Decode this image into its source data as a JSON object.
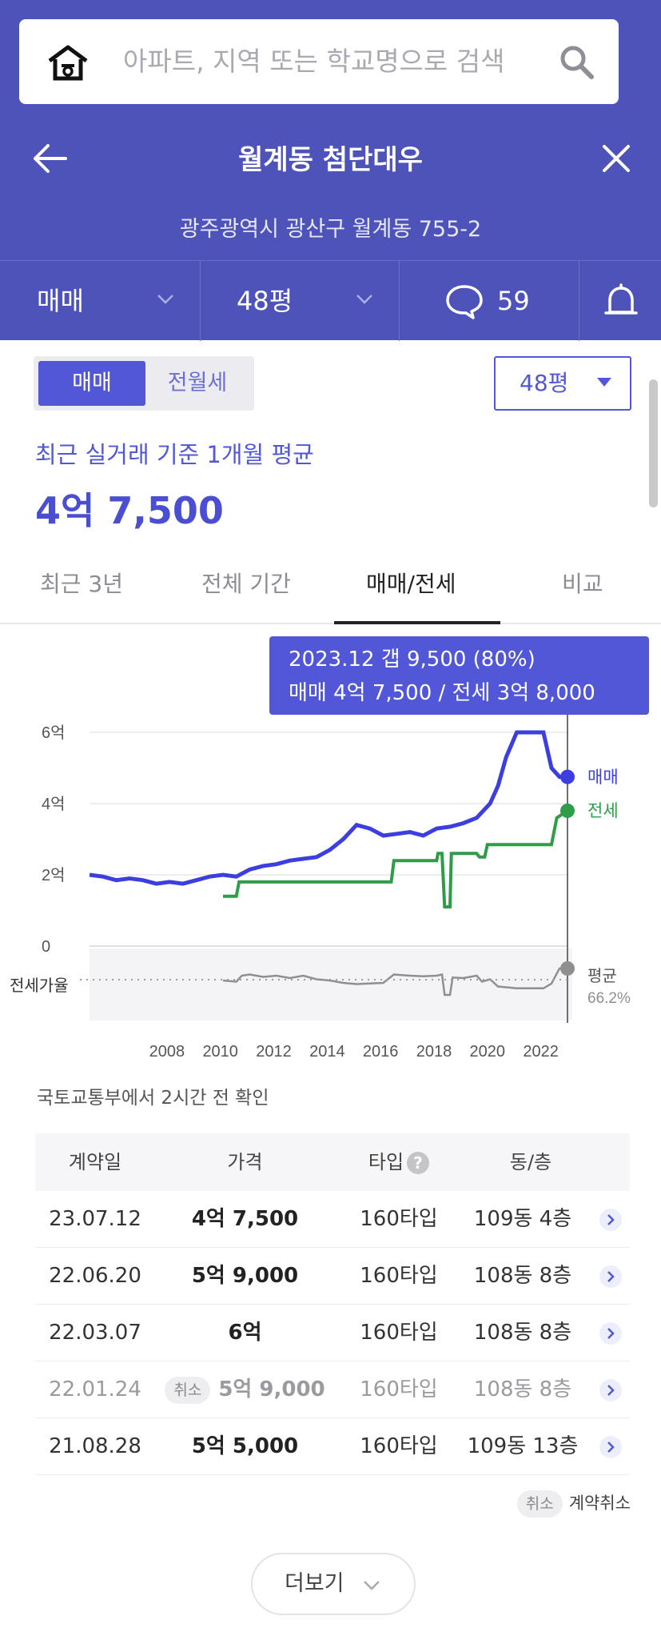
{
  "search": {
    "placeholder": "아파트, 지역 또는 학교명으로 검색",
    "icon": "search-icon",
    "home_icon": "home-icon"
  },
  "header": {
    "title": "월계동 첨단대우",
    "address": "광주광역시 광산구 월계동 755-2"
  },
  "filter_bar": {
    "trade_type": "매매",
    "size": "48평",
    "comment_count": "59"
  },
  "toggle": {
    "active": "매매",
    "inactive": "전월세"
  },
  "size_select": "48평",
  "average": {
    "label": "최근 실거래 기준 1개월 평균",
    "price": "4억 7,500"
  },
  "tabs": [
    {
      "label": "최근 3년",
      "active": false
    },
    {
      "label": "전체 기간",
      "active": false
    },
    {
      "label": "매매/전세",
      "active": true
    },
    {
      "label": "비교",
      "active": false
    }
  ],
  "chart_data": {
    "type": "line",
    "tooltip": {
      "line1": "2023.12  갭 9,500 (80%)",
      "line2": "매매 4억 7,500 / 전세 3억 8,000"
    },
    "y_ticks": [
      "6억",
      "4억",
      "2억",
      "0"
    ],
    "x_ticks": [
      "2008",
      "2010",
      "2012",
      "2014",
      "2016",
      "2018",
      "2020",
      "2022"
    ],
    "ylim": [
      0,
      6
    ],
    "series_labels": {
      "sale": "매매",
      "jeonse": "전세"
    },
    "ratio_label": "전세가율",
    "ratio_avg_label": "평균",
    "ratio_avg_value": "66.2%",
    "colors": {
      "sale": "#3c3ee0",
      "jeonse": "#2f9c49",
      "ratio": "#8f8f8f",
      "cursor": "#6f6f6f"
    },
    "sale": [
      [
        2006.0,
        2.0
      ],
      [
        2006.5,
        1.95
      ],
      [
        2007.0,
        1.85
      ],
      [
        2007.5,
        1.9
      ],
      [
        2008.0,
        1.85
      ],
      [
        2008.5,
        1.75
      ],
      [
        2009.0,
        1.8
      ],
      [
        2009.5,
        1.75
      ],
      [
        2010.0,
        1.85
      ],
      [
        2010.5,
        1.95
      ],
      [
        2011.0,
        2.0
      ],
      [
        2011.5,
        1.95
      ],
      [
        2012.0,
        2.15
      ],
      [
        2012.5,
        2.25
      ],
      [
        2013.0,
        2.3
      ],
      [
        2013.5,
        2.4
      ],
      [
        2014.0,
        2.45
      ],
      [
        2014.5,
        2.5
      ],
      [
        2015.0,
        2.7
      ],
      [
        2015.5,
        3.0
      ],
      [
        2016.0,
        3.4
      ],
      [
        2016.5,
        3.3
      ],
      [
        2017.0,
        3.1
      ],
      [
        2017.5,
        3.15
      ],
      [
        2018.0,
        3.2
      ],
      [
        2018.5,
        3.1
      ],
      [
        2019.0,
        3.3
      ],
      [
        2019.5,
        3.35
      ],
      [
        2020.0,
        3.45
      ],
      [
        2020.5,
        3.6
      ],
      [
        2021.0,
        4.0
      ],
      [
        2021.3,
        4.5
      ],
      [
        2021.6,
        5.3
      ],
      [
        2022.0,
        6.0
      ],
      [
        2022.5,
        6.0
      ],
      [
        2023.0,
        6.0
      ],
      [
        2023.3,
        5.0
      ],
      [
        2023.6,
        4.75
      ],
      [
        2023.9,
        4.75
      ]
    ],
    "jeonse": [
      [
        2011.0,
        1.4
      ],
      [
        2011.5,
        1.4
      ],
      [
        2011.6,
        1.8
      ],
      [
        2015.0,
        1.8
      ],
      [
        2017.3,
        1.8
      ],
      [
        2017.4,
        2.4
      ],
      [
        2019.0,
        2.4
      ],
      [
        2019.05,
        2.6
      ],
      [
        2019.2,
        2.6
      ],
      [
        2019.3,
        1.1
      ],
      [
        2019.5,
        1.1
      ],
      [
        2019.55,
        2.6
      ],
      [
        2020.5,
        2.6
      ],
      [
        2020.6,
        2.5
      ],
      [
        2020.8,
        2.5
      ],
      [
        2020.9,
        2.85
      ],
      [
        2022.0,
        2.85
      ],
      [
        2023.3,
        2.85
      ],
      [
        2023.5,
        3.6
      ],
      [
        2023.9,
        3.8
      ]
    ],
    "ratio": [
      [
        2011.0,
        60
      ],
      [
        2011.5,
        58
      ],
      [
        2011.7,
        68
      ],
      [
        2012.0,
        70
      ],
      [
        2012.5,
        66
      ],
      [
        2013.0,
        68
      ],
      [
        2013.5,
        64
      ],
      [
        2014.0,
        68
      ],
      [
        2014.5,
        62
      ],
      [
        2015.0,
        60
      ],
      [
        2015.5,
        56
      ],
      [
        2016.0,
        54
      ],
      [
        2016.5,
        55
      ],
      [
        2017.0,
        56
      ],
      [
        2017.4,
        70
      ],
      [
        2018.0,
        68
      ],
      [
        2018.5,
        67
      ],
      [
        2019.0,
        68
      ],
      [
        2019.2,
        70
      ],
      [
        2019.3,
        36
      ],
      [
        2019.5,
        36
      ],
      [
        2019.6,
        65
      ],
      [
        2020.0,
        64
      ],
      [
        2020.5,
        68
      ],
      [
        2020.7,
        58
      ],
      [
        2021.0,
        62
      ],
      [
        2021.3,
        50
      ],
      [
        2022.0,
        47
      ],
      [
        2023.0,
        47
      ],
      [
        2023.3,
        55
      ],
      [
        2023.6,
        80
      ],
      [
        2023.9,
        80
      ]
    ]
  },
  "source_note": "국토교통부에서 2시간 전 확인",
  "table": {
    "headers": {
      "date": "계약일",
      "price": "가격",
      "type": "타입",
      "help": "?",
      "unit": "동/층"
    },
    "rows": [
      {
        "date": "23.07.12",
        "price": "4억 7,500",
        "type": "160타입",
        "unit": "109동 4층",
        "cancelled": false
      },
      {
        "date": "22.06.20",
        "price": "5억 9,000",
        "type": "160타입",
        "unit": "108동 8층",
        "cancelled": false
      },
      {
        "date": "22.03.07",
        "price": "6억",
        "type": "160타입",
        "unit": "108동 8층",
        "cancelled": false
      },
      {
        "date": "22.01.24",
        "price": "5억 9,000",
        "type": "160타입",
        "unit": "108동 8층",
        "cancelled": true,
        "cancel_tag": "취소"
      },
      {
        "date": "21.08.28",
        "price": "5억 5,000",
        "type": "160타입",
        "unit": "109동 13층",
        "cancelled": false
      }
    ]
  },
  "legend": {
    "chip": "취소",
    "text": "계약취소"
  },
  "more_button": "더보기"
}
